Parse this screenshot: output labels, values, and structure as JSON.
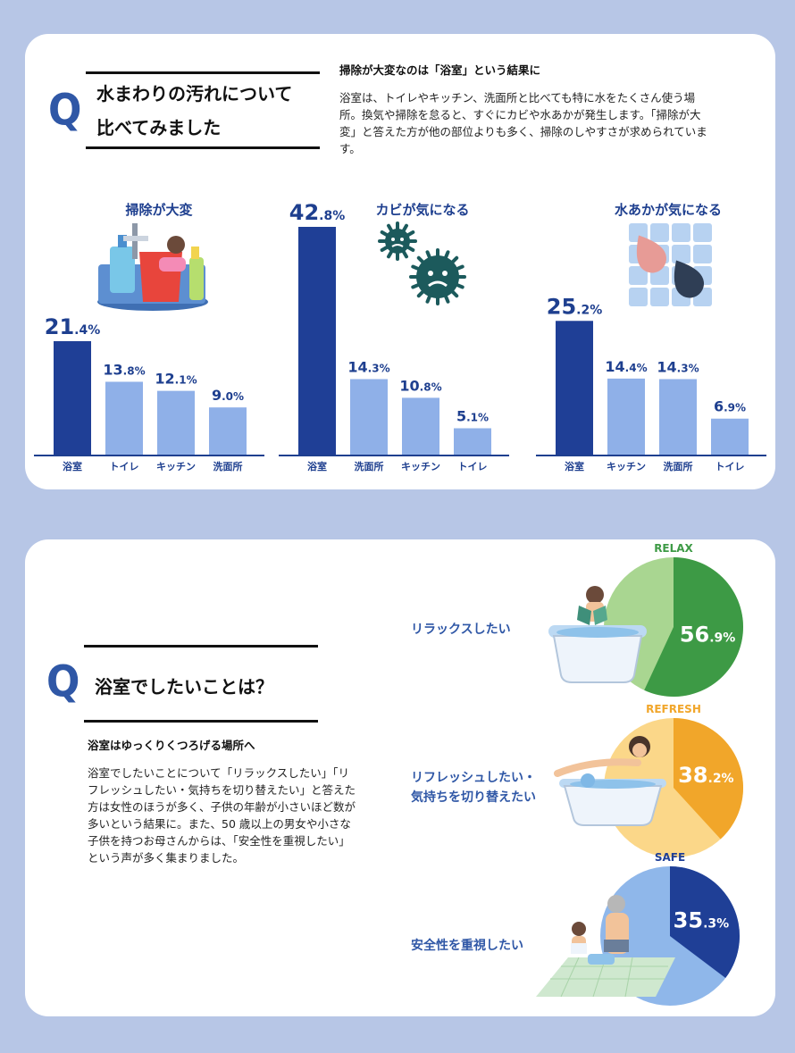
{
  "section1": {
    "q": "Q",
    "title_line1": "水まわりの汚れについて",
    "title_line2": "比べてみました",
    "subhead": "掃除が大変なのは「浴室」という結果に",
    "para_lines": [
      "浴室は、トイレやキッチン、洗面所と比べても特に水をたくさん使う場",
      "所。換気や掃除を怠ると、すぐにカビや水あかが発生します。「掃除が大",
      "変」と答えた方が他の部位よりも多く、掃除のしやすさが求められていま",
      "す。"
    ]
  },
  "section2": {
    "q": "Q",
    "title": "浴室でしたいことは？",
    "subhead": "浴室はゆっくりくつろげる場所へ",
    "para_lines": [
      "浴室でしたいことについて「リラックスしたい」「リ",
      "フレッシュしたい・気持ちを切り替えたい」と答えた",
      "方は女性のほうが多く、子供の年齢が小さいほど数が",
      "多いという結果に。また、50 歳以上の男女や小さな",
      "子供を持つお母さんからは、「安全性を重視したい」",
      "という声が多く集まりました。"
    ]
  },
  "colors": {
    "highlight": "#1f3f96",
    "bar": "#8fb0e8",
    "relax_dark": "#3d9a45",
    "relax_light": "#a9d691",
    "refresh_dark": "#f1a62a",
    "refresh_light": "#fbd789",
    "safe_dark": "#1f3f96",
    "safe_light": "#8fb7ea"
  },
  "chart_data": [
    {
      "type": "bar",
      "title": "掃除が大変",
      "categories": [
        "浴室",
        "トイレ",
        "キッチン",
        "洗面所"
      ],
      "values": [
        21.4,
        13.8,
        12.1,
        9.0
      ],
      "value_labels": [
        [
          "21",
          ".4%"
        ],
        [
          "13",
          ".8%"
        ],
        [
          "12",
          ".1%"
        ],
        [
          "9",
          ".0%"
        ]
      ],
      "icon": "cleaning-supplies-icon"
    },
    {
      "type": "bar",
      "title": "カビが気になる",
      "categories": [
        "浴室",
        "洗面所",
        "キッチン",
        "トイレ"
      ],
      "values": [
        42.8,
        14.3,
        10.8,
        5.1
      ],
      "value_labels": [
        [
          "42",
          ".8%"
        ],
        [
          "14",
          ".3%"
        ],
        [
          "10",
          ".8%"
        ],
        [
          "5",
          ".1%"
        ]
      ],
      "icon": "mold-germ-icon"
    },
    {
      "type": "bar",
      "title": "水あかが気になる",
      "categories": [
        "浴室",
        "キッチン",
        "洗面所",
        "トイレ"
      ],
      "values": [
        25.2,
        14.4,
        14.3,
        6.9
      ],
      "value_labels": [
        [
          "25",
          ".2%"
        ],
        [
          "14",
          ".4%"
        ],
        [
          "14",
          ".3%"
        ],
        [
          "6",
          ".9%"
        ]
      ],
      "icon": "water-stain-drops-icon"
    },
    {
      "type": "pie",
      "title": "RELAX",
      "label": "リラックスしたい",
      "value": 56.9,
      "value_label": [
        "56",
        ".9%"
      ],
      "icon": "bathtub-reading-child-icon"
    },
    {
      "type": "pie",
      "title": "REFRESH",
      "label_lines": [
        "リフレッシュしたい・",
        "気持ちを切り替えたい"
      ],
      "value": 38.2,
      "value_label": [
        "38",
        ".2%"
      ],
      "icon": "bathtub-relaxing-woman-icon"
    },
    {
      "type": "pie",
      "title": "SAFE",
      "label": "安全性を重視したい",
      "value": 35.3,
      "value_label": [
        "35",
        ".3%"
      ],
      "icon": "grandparent-child-bathroom-icon"
    }
  ]
}
